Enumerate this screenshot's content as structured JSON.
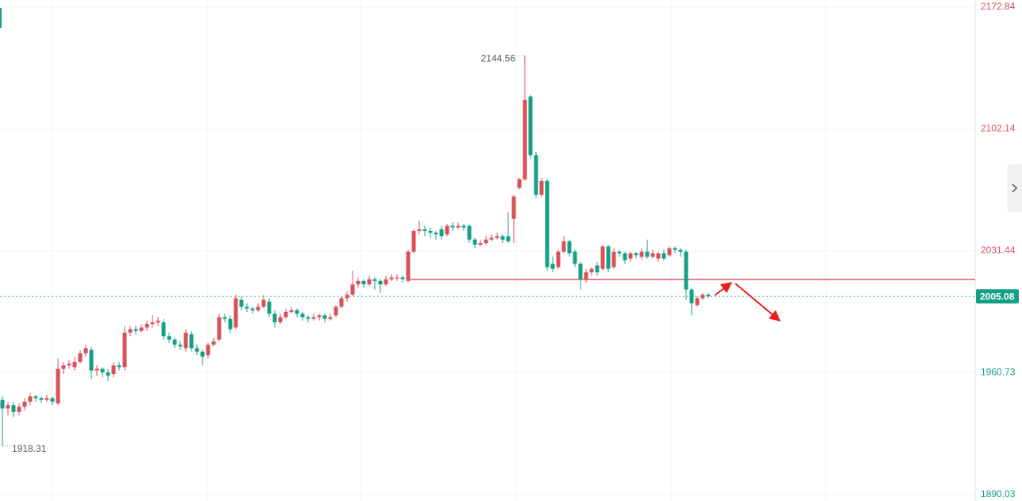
{
  "chart_data": {
    "type": "candlestick",
    "candles": [
      [
        1945,
        1947,
        1918.31,
        1940
      ],
      [
        1940,
        1944,
        1936,
        1942
      ],
      [
        1942,
        1944,
        1935,
        1938
      ],
      [
        1938,
        1943,
        1936,
        1941
      ],
      [
        1941,
        1946,
        1939,
        1944
      ],
      [
        1944,
        1949,
        1942,
        1947
      ],
      [
        1947,
        1948,
        1944,
        1946
      ],
      [
        1946,
        1947,
        1943,
        1945
      ],
      [
        1945,
        1948,
        1944,
        1946
      ],
      [
        1946,
        1947,
        1942,
        1944
      ],
      [
        1943,
        1969,
        1942,
        1963
      ],
      [
        1963,
        1967,
        1960,
        1965
      ],
      [
        1965,
        1968,
        1963,
        1966
      ],
      [
        1964,
        1970,
        1962,
        1967
      ],
      [
        1967,
        1974,
        1966,
        1972
      ],
      [
        1972,
        1977,
        1970,
        1975
      ],
      [
        1974,
        1976,
        1957,
        1962
      ],
      [
        1962,
        1965,
        1959,
        1963
      ],
      [
        1963,
        1964,
        1958,
        1961
      ],
      [
        1961,
        1963,
        1956,
        1959
      ],
      [
        1960,
        1967,
        1958,
        1965
      ],
      [
        1965,
        1967,
        1962,
        1964
      ],
      [
        1964,
        1988,
        1962,
        1984
      ],
      [
        1984,
        1988,
        1982,
        1986
      ],
      [
        1986,
        1988,
        1983,
        1985
      ],
      [
        1985,
        1989,
        1984,
        1987
      ],
      [
        1987,
        1991,
        1985,
        1989
      ],
      [
        1989,
        1994,
        1987,
        1990
      ],
      [
        1990,
        1993,
        1988,
        1991
      ],
      [
        1990,
        1992,
        1980,
        1982
      ],
      [
        1982,
        1984,
        1978,
        1980
      ],
      [
        1980,
        1981,
        1975,
        1977
      ],
      [
        1977,
        1979,
        1974,
        1976
      ],
      [
        1975,
        1986,
        1973,
        1984
      ],
      [
        1983,
        1985,
        1973,
        1975
      ],
      [
        1975,
        1977,
        1971,
        1973
      ],
      [
        1973,
        1974,
        1965,
        1970
      ],
      [
        1971,
        1978,
        1969,
        1977
      ],
      [
        1977,
        1981,
        1976,
        1979
      ],
      [
        1980,
        1995,
        1979,
        1993
      ],
      [
        1993,
        1995,
        1990,
        1992
      ],
      [
        1992,
        1994,
        1984,
        1986
      ],
      [
        1987,
        2006,
        1986,
        2004
      ],
      [
        2003,
        2005,
        1997,
        1999
      ],
      [
        1999,
        2001,
        1996,
        1998
      ],
      [
        1998,
        1999,
        1995,
        1997
      ],
      [
        1997,
        2001,
        1996,
        1999
      ],
      [
        1999,
        2006,
        1998,
        2003
      ],
      [
        2002,
        2004,
        1993,
        1995
      ],
      [
        1995,
        1997,
        1987,
        1990
      ],
      [
        1990,
        1995,
        1989,
        1993
      ],
      [
        1993,
        1998,
        1992,
        1996
      ],
      [
        1996,
        1999,
        1995,
        1997
      ],
      [
        1997,
        1998,
        1993,
        1995
      ],
      [
        1995,
        1996,
        1991,
        1993
      ],
      [
        1993,
        1994,
        1990,
        1992
      ],
      [
        1992,
        1995,
        1991,
        1993
      ],
      [
        1993,
        1995,
        1991,
        1994
      ],
      [
        1994,
        1995,
        1990,
        1992
      ],
      [
        1992,
        1995,
        1991,
        1993
      ],
      [
        1994,
        2000,
        1993,
        1999
      ],
      [
        1999,
        2005,
        1998,
        2004
      ],
      [
        2004,
        2008,
        2002,
        2006
      ],
      [
        2006,
        2020,
        2005,
        2012
      ],
      [
        2012,
        2016,
        2010,
        2014
      ],
      [
        2014,
        2015,
        2010,
        2012
      ],
      [
        2012,
        2017,
        2011,
        2015
      ],
      [
        2015,
        2016,
        2009,
        2014
      ],
      [
        2014,
        2015,
        2007,
        2012
      ],
      [
        2012,
        2017,
        2011,
        2015
      ],
      [
        2015,
        2018,
        2014,
        2016
      ],
      [
        2016,
        2018,
        2014,
        2016
      ],
      [
        2016,
        2017,
        2013,
        2015
      ],
      [
        2014,
        2032,
        2013,
        2031
      ],
      [
        2031,
        2044,
        2030,
        2043
      ],
      [
        2043,
        2049,
        2041,
        2044
      ],
      [
        2044,
        2046,
        2040,
        2043
      ],
      [
        2043,
        2045,
        2039,
        2042
      ],
      [
        2042,
        2043,
        2038,
        2041
      ],
      [
        2044,
        2046,
        2038,
        2040
      ],
      [
        2041,
        2047,
        2040,
        2046
      ],
      [
        2046,
        2048,
        2043,
        2045
      ],
      [
        2045,
        2048,
        2044,
        2046
      ],
      [
        2046,
        2047,
        2043,
        2045
      ],
      [
        2046,
        2047,
        2036,
        2038
      ],
      [
        2038,
        2039,
        2033,
        2035
      ],
      [
        2035,
        2038,
        2034,
        2036
      ],
      [
        2036,
        2040,
        2035,
        2038
      ],
      [
        2038,
        2041,
        2037,
        2039
      ],
      [
        2039,
        2042,
        2038,
        2040
      ],
      [
        2040,
        2041,
        2036,
        2038
      ],
      [
        2040,
        2054,
        2036,
        2037
      ],
      [
        2050,
        2064,
        2036,
        2063
      ],
      [
        2068,
        2074,
        2067,
        2073
      ],
      [
        2073,
        2144.56,
        2072,
        2119
      ],
      [
        2121,
        2122,
        2085,
        2087
      ],
      [
        2087,
        2089,
        2062,
        2064
      ],
      [
        2064,
        2074,
        2063,
        2072
      ],
      [
        2072,
        2073,
        2020,
        2022
      ],
      [
        2024,
        2028,
        2019,
        2021
      ],
      [
        2022,
        2032,
        2021,
        2031
      ],
      [
        2031,
        2040,
        2030,
        2037
      ],
      [
        2037,
        2038,
        2028,
        2030
      ],
      [
        2031,
        2032,
        2022,
        2024
      ],
      [
        2024,
        2025,
        2009,
        2015
      ],
      [
        2015,
        2021,
        2013,
        2019
      ],
      [
        2019,
        2022,
        2017,
        2021
      ],
      [
        2023,
        2025,
        2017,
        2019
      ],
      [
        2021,
        2035,
        2020,
        2034
      ],
      [
        2034,
        2035,
        2019,
        2021
      ],
      [
        2022,
        2033,
        2021,
        2031
      ],
      [
        2031,
        2032,
        2028,
        2030
      ],
      [
        2030,
        2031,
        2024,
        2026
      ],
      [
        2027,
        2031,
        2025,
        2030
      ],
      [
        2030,
        2031,
        2027,
        2029
      ],
      [
        2028,
        2033,
        2026,
        2031
      ],
      [
        2031,
        2038,
        2027,
        2028
      ],
      [
        2028,
        2032,
        2027,
        2030
      ],
      [
        2027,
        2031,
        2025,
        2030
      ],
      [
        2030,
        2032,
        2026,
        2027
      ],
      [
        2029,
        2034,
        2028,
        2033
      ],
      [
        2033,
        2034,
        2030,
        2032
      ],
      [
        2032,
        2033,
        2028,
        2031
      ],
      [
        2031,
        2032,
        2003,
        2009
      ],
      [
        2009,
        2010,
        1994,
        2001
      ],
      [
        2000,
        2005,
        1999,
        2004
      ],
      [
        2004,
        2007,
        2003,
        2006
      ],
      [
        2006,
        2007,
        2004,
        2005.08
      ]
    ],
    "ylim": [
      1890.03,
      2172.84
    ],
    "yticks": [
      1890.03,
      1960.73,
      2031.44,
      2102.14,
      2172.84
    ],
    "up_color": "#d9505b",
    "down_color": "#14a085",
    "grid": true
  }
}
